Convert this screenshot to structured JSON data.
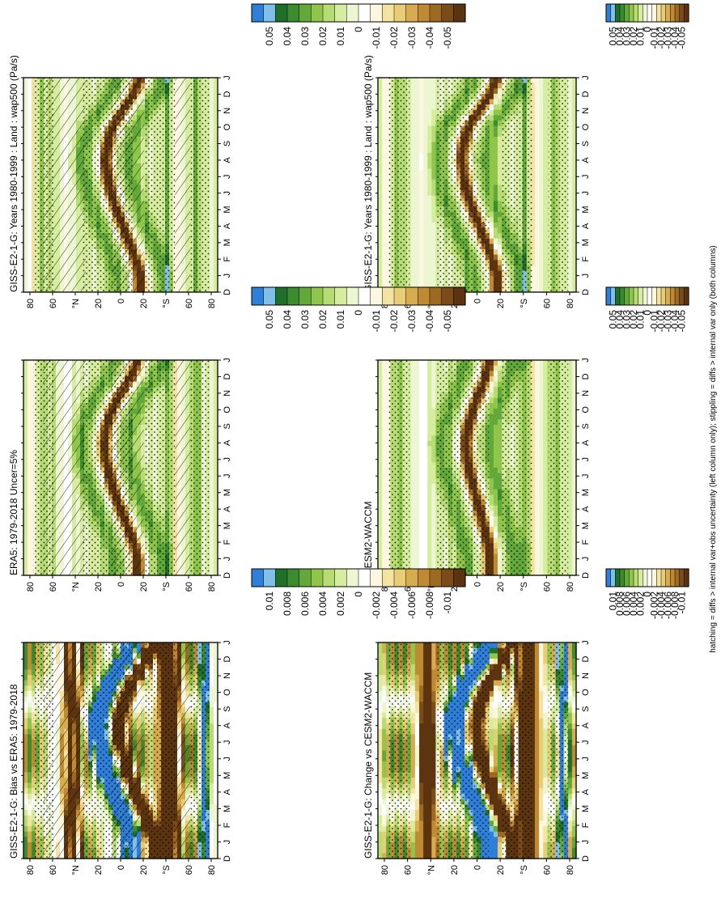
{
  "footer": "hatching = diffs > internal var+obs uncertainty (left column only); stippling = diffs > internal var only (both columns)",
  "colorbars": {
    "main": {
      "labels": [
        "0.05",
        "0.04",
        "0.03",
        "0.02",
        "0.01",
        "0",
        "-0.01",
        "-0.02",
        "-0.03",
        "-0.04",
        "-0.05"
      ],
      "colors": [
        "#2e7fd9",
        "#7fbfe8",
        "#1f6e2a",
        "#3a8c2e",
        "#63a83a",
        "#8fc54a",
        "#b6dc73",
        "#d6ec9e",
        "#ecf6d2",
        "#ffffff",
        "#fdf7df",
        "#f4e4a3",
        "#e8cc76",
        "#d7ab4f",
        "#c08a32",
        "#9e6a22",
        "#7b4c17",
        "#5c3510"
      ]
    },
    "diff": {
      "labels": [
        "0.01",
        "0.008",
        "0.006",
        "0.004",
        "0.002",
        "0",
        "-0.002",
        "-0.004",
        "-0.006",
        "-0.008",
        "-0.01"
      ],
      "colors": [
        "#2e7fd9",
        "#7fbfe8",
        "#1f6e2a",
        "#3a8c2e",
        "#63a83a",
        "#8fc54a",
        "#b6dc73",
        "#d6ec9e",
        "#ecf6d2",
        "#ffffff",
        "#fdf7df",
        "#f4e4a3",
        "#e8cc76",
        "#d7ab4f",
        "#c08a32",
        "#9e6a22",
        "#7b4c17",
        "#5c3510"
      ]
    }
  },
  "axes": {
    "months": [
      "D",
      "J",
      "F",
      "M",
      "A",
      "M",
      "J",
      "J",
      "A",
      "S",
      "O",
      "N",
      "D",
      "J"
    ],
    "lat_ticks": [
      "80",
      "60",
      "°N",
      "20",
      "0",
      "20",
      "°S",
      "60",
      "80"
    ]
  },
  "chart_data": [
    {
      "type": "heatmap",
      "title": "GISS-E2-1-G: Years 1980-1999 : Land : wap500 (Pa/s)",
      "colorbar": "main",
      "hatching": true,
      "stippling": true,
      "x": [
        "D",
        "J",
        "F",
        "M",
        "A",
        "M",
        "J",
        "J",
        "A",
        "S",
        "O",
        "N",
        "D",
        "J"
      ],
      "y": [
        "80",
        "60",
        "°N",
        "20",
        "0",
        "20",
        "°S",
        "60",
        "80"
      ],
      "itcz_peak_lat_by_month": [
        -18,
        -18,
        -14,
        -8,
        -2,
        4,
        9,
        12,
        14,
        12,
        8,
        -2,
        -12,
        -18
      ]
    },
    {
      "type": "heatmap",
      "title": "GISS-E2-1-G: Years 1980-1999 : Land : wap500 (Pa/s)",
      "colorbar": "main",
      "hatching": false,
      "stippling": true,
      "x": [
        "D",
        "J",
        "F",
        "M",
        "A",
        "M",
        "J",
        "J",
        "A",
        "S",
        "O",
        "N",
        "D",
        "J"
      ],
      "y": [
        "80",
        "60",
        "°N",
        "20",
        "0",
        "20",
        "°S",
        "60",
        "80"
      ],
      "itcz_peak_lat_by_month": [
        -18,
        -18,
        -14,
        -8,
        -2,
        4,
        9,
        12,
        14,
        12,
        8,
        -2,
        -12,
        -18
      ]
    },
    {
      "type": "heatmap",
      "title": "ERA5: 1979-2018 Uncer=5%",
      "colorbar": "main",
      "hatching": true,
      "stippling": true,
      "x": [
        "D",
        "J",
        "F",
        "M",
        "A",
        "M",
        "J",
        "J",
        "A",
        "S",
        "O",
        "N",
        "D",
        "J"
      ],
      "y": [
        "80",
        "60",
        "°N",
        "20",
        "0",
        "20",
        "°S",
        "60",
        "80"
      ],
      "itcz_peak_lat_by_month": [
        -16,
        -16,
        -12,
        -6,
        0,
        6,
        10,
        14,
        15,
        13,
        8,
        0,
        -10,
        -16
      ]
    },
    {
      "type": "heatmap",
      "title": "CESM2-WACCM",
      "colorbar": "main",
      "hatching": false,
      "stippling": true,
      "x": [
        "D",
        "J",
        "F",
        "M",
        "A",
        "M",
        "J",
        "J",
        "A",
        "S",
        "O",
        "N",
        "D",
        "J"
      ],
      "y": [
        "80",
        "60",
        "°N",
        "20",
        "0",
        "20",
        "°S",
        "60",
        "80"
      ],
      "itcz_peak_lat_by_month": [
        -12,
        -12,
        -10,
        -6,
        -2,
        2,
        6,
        9,
        10,
        8,
        4,
        -2,
        -8,
        -12
      ]
    },
    {
      "type": "heatmap",
      "title": "GISS-E2-1-G: Bias vs ERA5: 1979-2018",
      "colorbar": "diff",
      "hatching": true,
      "stippling": true,
      "x": [
        "D",
        "J",
        "F",
        "M",
        "A",
        "M",
        "J",
        "J",
        "A",
        "S",
        "O",
        "N",
        "D",
        "J"
      ],
      "y": [
        "80",
        "60",
        "°N",
        "20",
        "0",
        "20",
        "°S",
        "60",
        "80"
      ]
    },
    {
      "type": "heatmap",
      "title": "GISS-E2-1-G: Change vs CESM2-WACCM",
      "colorbar": "diff",
      "hatching": false,
      "stippling": true,
      "x": [
        "D",
        "J",
        "F",
        "M",
        "A",
        "M",
        "J",
        "J",
        "A",
        "S",
        "O",
        "N",
        "D",
        "J"
      ],
      "y": [
        "80",
        "60",
        "°N",
        "20",
        "0",
        "20",
        "°S",
        "60",
        "80"
      ]
    }
  ]
}
